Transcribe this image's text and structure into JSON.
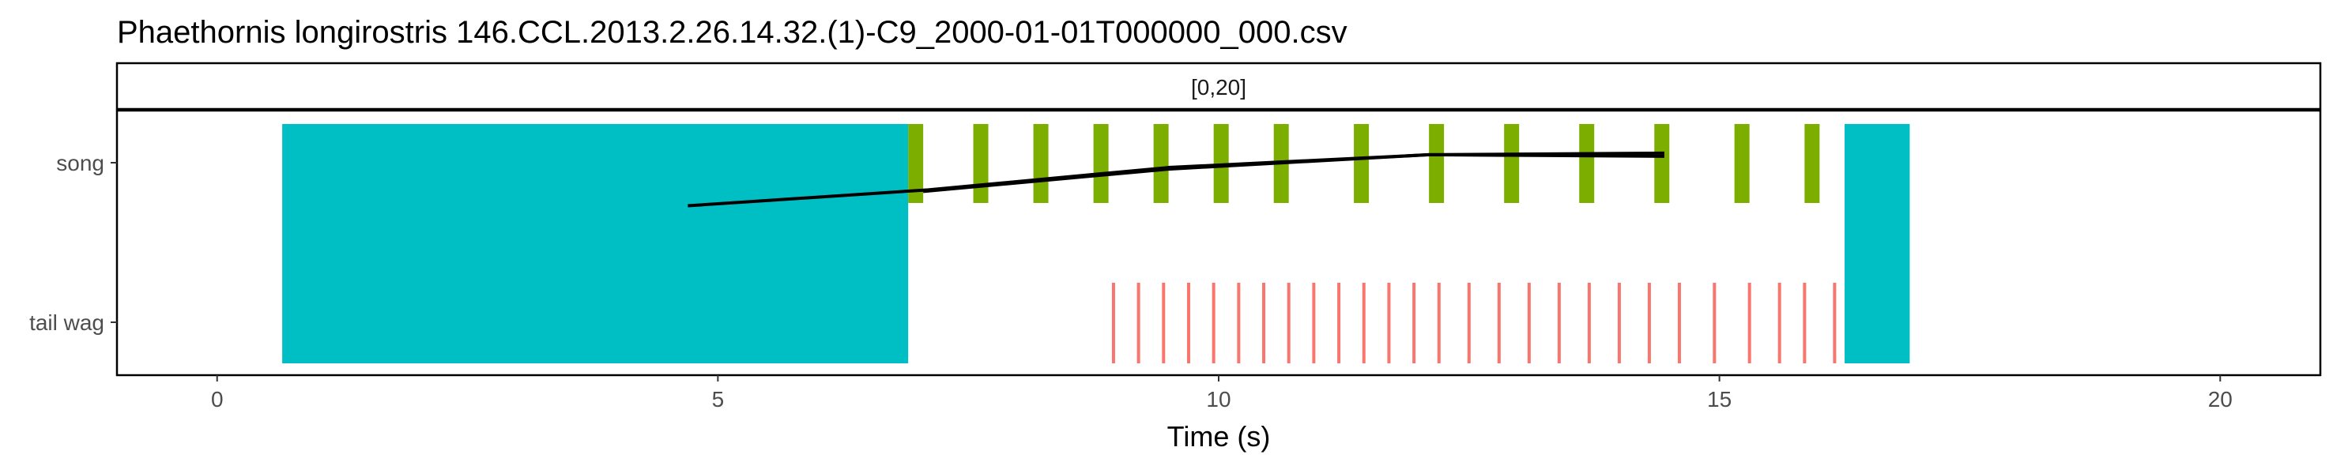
{
  "chart_data": {
    "type": "timeline",
    "title": "Phaethornis longirostris   146.CCL.2013.2.26.14.32.(1)-C9_2000-01-01T000000_000.csv",
    "facet_label": "[0,20]",
    "xlabel": "Time (s)",
    "ylabel": "",
    "xlim": [
      -1,
      21
    ],
    "x_ticks": [
      0,
      5,
      10,
      15,
      20
    ],
    "y_categories": [
      "song",
      "tail wag"
    ],
    "colors": {
      "background_block": "#00BFC4",
      "song": "#7CAE00",
      "tail_wag": "#F8766D",
      "trend_line": "#000000",
      "frame": "#000000"
    },
    "background_blocks": [
      {
        "start": 0.65,
        "end": 6.9
      },
      {
        "start": 16.25,
        "end": 16.9
      }
    ],
    "song_events": [
      {
        "start": 6.9,
        "end": 7.05
      },
      {
        "start": 7.55,
        "end": 7.7
      },
      {
        "start": 8.15,
        "end": 8.3
      },
      {
        "start": 8.75,
        "end": 8.9
      },
      {
        "start": 9.35,
        "end": 9.5
      },
      {
        "start": 9.95,
        "end": 10.1
      },
      {
        "start": 10.55,
        "end": 10.7
      },
      {
        "start": 11.35,
        "end": 11.5
      },
      {
        "start": 12.1,
        "end": 12.25
      },
      {
        "start": 12.85,
        "end": 13.0
      },
      {
        "start": 13.6,
        "end": 13.75
      },
      {
        "start": 14.35,
        "end": 14.5
      },
      {
        "start": 15.15,
        "end": 15.3
      },
      {
        "start": 15.85,
        "end": 16.0
      }
    ],
    "tail_wag_events": [
      8.95,
      9.2,
      9.45,
      9.7,
      9.95,
      10.2,
      10.45,
      10.7,
      10.95,
      11.2,
      11.45,
      11.7,
      11.95,
      12.2,
      12.5,
      12.8,
      13.1,
      13.4,
      13.7,
      14.0,
      14.3,
      14.6,
      14.95,
      15.3,
      15.6,
      15.85,
      16.15
    ],
    "trend_lines": [
      {
        "category": "song",
        "points": [
          [
            7.05,
            0.82
          ],
          [
            9.5,
            0.96
          ],
          [
            12.1,
            1.05
          ],
          [
            14.45,
            1.04
          ]
        ]
      },
      {
        "category": "tail wag",
        "points": [
          [
            4.7,
            0.73
          ],
          [
            7.1,
            0.83
          ],
          [
            9.5,
            0.97
          ],
          [
            12.1,
            1.05
          ],
          [
            14.45,
            1.06
          ]
        ]
      }
    ]
  }
}
